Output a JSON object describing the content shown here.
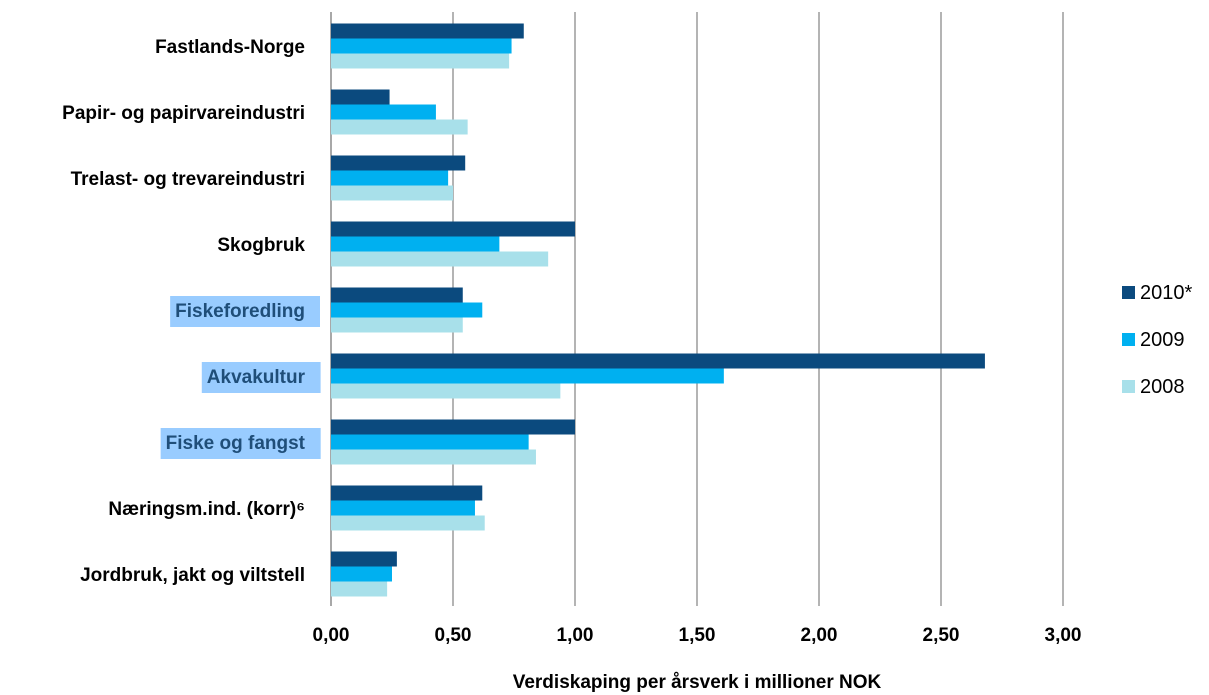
{
  "chart_data": {
    "type": "bar",
    "orientation": "horizontal",
    "title": "",
    "xlabel": "Verdiskaping per årsverk i millioner NOK",
    "ylabel": "",
    "xlim": [
      0,
      3
    ],
    "xticks": [
      "0,00",
      "0,50",
      "1,00",
      "1,50",
      "2,00",
      "2,50",
      "3,00"
    ],
    "grid": "vertical",
    "legend_position": "right",
    "categories": [
      "Fastlands-Norge",
      "Papir- og papirvareindustri",
      "Trelast- og trevareindustri",
      "Skogbruk",
      "Fiskeforedling",
      "Akvakultur",
      "Fiske og fangst",
      "Næringsm.ind. (korr)⁶",
      "Jordbruk, jakt og viltstell"
    ],
    "highlighted_categories": [
      "Fiskeforedling",
      "Akvakultur",
      "Fiske og fangst"
    ],
    "highlight_color": "#99ccff",
    "highlight_text_color": "#1f4e79",
    "series": [
      {
        "name": "2010*",
        "color": "#0b4a7e",
        "values": [
          0.79,
          0.24,
          0.55,
          1.0,
          0.54,
          2.68,
          1.0,
          0.62,
          0.27
        ]
      },
      {
        "name": "2009",
        "color": "#00b0f0",
        "values": [
          0.74,
          0.43,
          0.48,
          0.69,
          0.62,
          1.61,
          0.81,
          0.59,
          0.25
        ]
      },
      {
        "name": "2008",
        "color": "#a8e0ea",
        "values": [
          0.73,
          0.56,
          0.5,
          0.89,
          0.54,
          0.94,
          0.84,
          0.63,
          0.23
        ]
      }
    ]
  }
}
